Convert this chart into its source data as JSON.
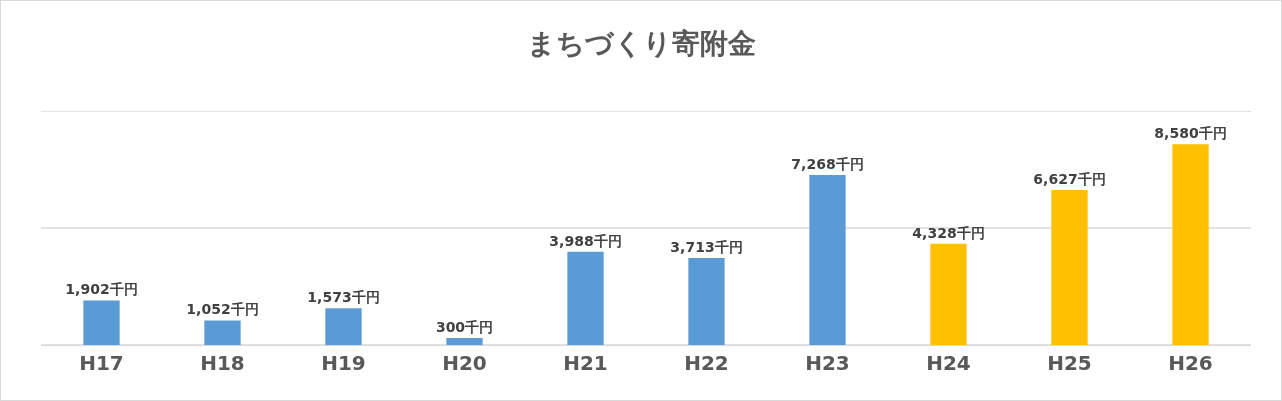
{
  "chart_data": {
    "type": "bar",
    "title": "まちづくり寄附金",
    "categories": [
      "H17",
      "H18",
      "H19",
      "H20",
      "H21",
      "H22",
      "H23",
      "H24",
      "H25",
      "H26"
    ],
    "values": [
      1902,
      1052,
      1573,
      300,
      3988,
      3713,
      7268,
      4328,
      6627,
      8580
    ],
    "colors": [
      "#5b9bd5",
      "#5b9bd5",
      "#5b9bd5",
      "#5b9bd5",
      "#5b9bd5",
      "#5b9bd5",
      "#5b9bd5",
      "#ffc000",
      "#ffc000",
      "#ffc000"
    ],
    "value_labels": [
      "1,902千円",
      "1,052千円",
      "1,573千円",
      "300千円",
      "3,988千円",
      "3,713千円",
      "7,268千円",
      "4,328千円",
      "6,627千円",
      "8,580千円"
    ],
    "ylim": [
      0,
      10000
    ],
    "yticks": [
      {
        "value": 0,
        "label": null
      },
      {
        "value": 5000,
        "label": null
      },
      {
        "value": 10000,
        "label": null
      }
    ],
    "grid": "y",
    "tick_labels": "x"
  }
}
